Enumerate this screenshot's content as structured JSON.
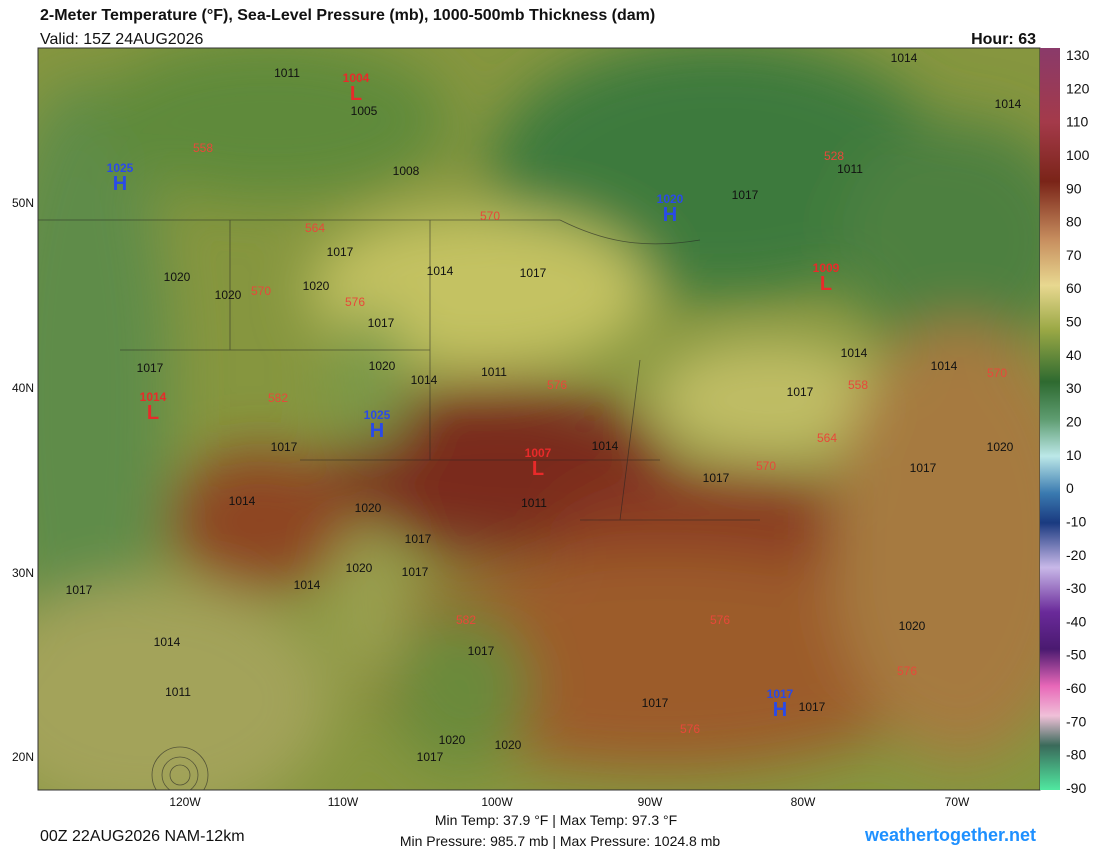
{
  "header": {
    "title": "2-Meter Temperature (°F), Sea-Level Pressure (mb), 1000-500mb Thickness (dam)",
    "valid": "Valid: 15Z 24AUG2026",
    "hour": "Hour: 63"
  },
  "colorbar": [
    130,
    120,
    110,
    100,
    90,
    80,
    70,
    60,
    50,
    40,
    30,
    20,
    10,
    0,
    -10,
    -20,
    -30,
    -40,
    -50,
    -60,
    -70,
    -80,
    -90
  ],
  "latitudes": [
    "50N",
    "40N",
    "30N",
    "20N"
  ],
  "longitudes": [
    "120W",
    "110W",
    "100W",
    "90W",
    "80W",
    "70W"
  ],
  "highs": [
    {
      "value": 1025,
      "letter": "H"
    },
    {
      "value": 1020,
      "letter": "H"
    },
    {
      "value": 1025,
      "letter": "H"
    },
    {
      "value": 1017,
      "letter": "H"
    }
  ],
  "lows": [
    {
      "value": 1004,
      "letter": "L"
    },
    {
      "value": 1014,
      "letter": "L"
    },
    {
      "value": 1007,
      "letter": "L"
    },
    {
      "value": 1009,
      "letter": "L"
    }
  ],
  "isobars": [
    1011,
    1005,
    1008,
    1017,
    1020,
    1020,
    1020,
    1014,
    1017,
    1017,
    1020,
    1014,
    1011,
    1017,
    1017,
    1014,
    1017,
    1017,
    1011,
    1014,
    1014,
    1014,
    1014,
    1017,
    1020,
    1017,
    1014,
    1020,
    1011,
    1017,
    1020,
    1017,
    1014,
    1017,
    1014,
    1011,
    1017,
    1017,
    1017,
    1020,
    1020,
    1020,
    1017
  ],
  "thickness": [
    558,
    570,
    564,
    570,
    576,
    582,
    576,
    558,
    564,
    570,
    582,
    576,
    576,
    576,
    570,
    528
  ],
  "footer": {
    "run": "00Z 22AUG2026 NAM-12km",
    "temperature": "Min Temp:  37.9 °F | Max Temp:  97.3 °F",
    "pressure": "Min Pressure: 985.7 mb | Max Pressure: 1024.8 mb",
    "site": "weathertogether.net"
  }
}
